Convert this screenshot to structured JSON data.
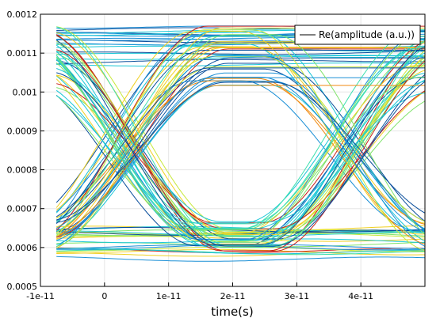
{
  "chart_data": {
    "type": "line",
    "subtype": "eye-diagram",
    "title": "",
    "xlabel": "time(s)",
    "ylabel": "",
    "xlim": [
      -1e-11,
      5e-11
    ],
    "ylim": [
      0.0005,
      0.0012
    ],
    "x_ticks": [
      -1e-11,
      0,
      1e-11,
      2e-11,
      3e-11,
      4e-11
    ],
    "x_tick_labels": [
      "-1e-11",
      "0",
      "1e-11",
      "2e-11",
      "3e-11",
      "4e-11"
    ],
    "y_ticks": [
      0.0005,
      0.0006,
      0.0007,
      0.0008,
      0.0009,
      0.001,
      0.0011,
      0.0012
    ],
    "y_tick_labels": [
      "0.0005",
      "0.0006",
      "0.0007",
      "0.0008",
      "0.0009",
      "0.001",
      "0.0011",
      "0.0012"
    ],
    "grid": true,
    "legend": {
      "position": "top-right",
      "entries": [
        "Re(amplitude (a.u.))"
      ]
    },
    "colormap": [
      "#0b4f9c",
      "#1a8fd6",
      "#19c6d6",
      "#3ee0b0",
      "#7fe36a",
      "#c8e83a",
      "#f0d020",
      "#f08a10",
      "#c8201a"
    ],
    "traces": {
      "x_start": -7.5e-12,
      "x_end": 5e-11,
      "low_level_range": [
        0.00057,
        0.00065
      ],
      "high_level_range": [
        0.00107,
        0.00117
      ],
      "eye_cross_left": 3e-12,
      "eye_cross_right": 3.8e-11,
      "eye_center": 2e-11,
      "eye_top_center": 0.00105,
      "eye_bottom_center": 0.00064,
      "cross_level": 0.00085
    }
  }
}
